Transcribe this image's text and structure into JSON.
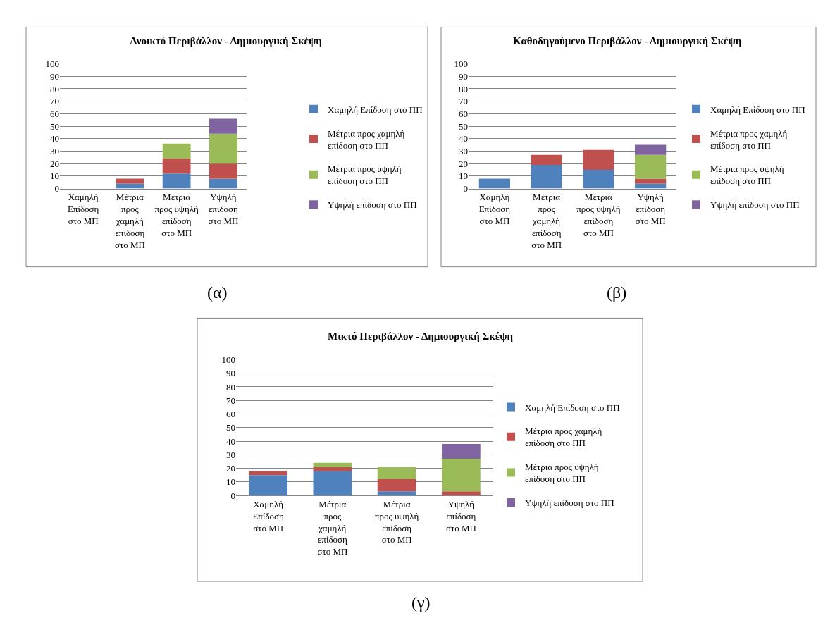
{
  "chart_data": [
    {
      "type": "bar",
      "stacked": true,
      "title": "Ανοικτό Περιβάλλον - Δημιουργική Σκέψη",
      "categories": [
        "Χαμηλή Επίδοση στο ΜΠ",
        "Μέτρια προς χαμηλή επίδοση στο ΜΠ",
        "Μέτρια προς υψηλή επίδοση στο ΜΠ",
        "Υψηλή επίδοση στο ΜΠ"
      ],
      "series": [
        {
          "name": "Χαμηλή Επίδοση στο ΠΠ",
          "color": "#4f81bd",
          "values": [
            0,
            4,
            12,
            8
          ]
        },
        {
          "name": "Μέτρια προς χαμηλή επίδοση στο ΠΠ",
          "color": "#c0504d",
          "values": [
            0,
            4,
            12,
            12
          ]
        },
        {
          "name": "Μέτρια προς υψηλή επίδοση στο ΠΠ",
          "color": "#9bbb59",
          "values": [
            0,
            0,
            12,
            24
          ]
        },
        {
          "name": "Υψηλή επίδοση στο ΠΠ",
          "color": "#8064a2",
          "values": [
            0,
            0,
            0,
            12
          ]
        }
      ],
      "ylim": [
        0,
        100
      ],
      "yticks": [
        0,
        10,
        20,
        30,
        40,
        50,
        60,
        70,
        80,
        90,
        100
      ],
      "grid": "y",
      "legend": "right",
      "annotations": [
        "(α)"
      ]
    },
    {
      "type": "bar",
      "stacked": true,
      "title": "Καθοδηγούμενο Περιβάλλον - Δημιουργική Σκέψη",
      "categories": [
        "Χαμηλή Επίδοση στο ΜΠ",
        "Μέτρια προς χαμηλή επίδοση στο ΜΠ",
        "Μέτρια προς υψηλή επίδοση στο ΜΠ",
        "Υψηλή επίδοση στο ΜΠ"
      ],
      "series": [
        {
          "name": "Χαμηλή Επίδοση στο ΠΠ",
          "color": "#4f81bd",
          "values": [
            8,
            19,
            15,
            4
          ]
        },
        {
          "name": "Μέτρια προς χαμηλή επίδοση στο ΠΠ",
          "color": "#c0504d",
          "values": [
            0,
            8,
            16,
            4
          ]
        },
        {
          "name": "Μέτρια προς υψηλή επίδοση στο ΠΠ",
          "color": "#9bbb59",
          "values": [
            0,
            0,
            0,
            19
          ]
        },
        {
          "name": "Υψηλή επίδοση στο ΠΠ",
          "color": "#8064a2",
          "values": [
            0,
            0,
            0,
            8
          ]
        }
      ],
      "ylim": [
        0,
        100
      ],
      "yticks": [
        0,
        10,
        20,
        30,
        40,
        50,
        60,
        70,
        80,
        90,
        100
      ],
      "grid": "y",
      "legend": "right",
      "annotations": [
        "(β)"
      ]
    },
    {
      "type": "bar",
      "stacked": true,
      "title": "Μικτό Περιβάλλον - Δημιουργική Σκέψη",
      "categories": [
        "Χαμηλή Επίδοση στο ΜΠ",
        "Μέτρια προς χαμηλή επίδοση στο ΜΠ",
        "Μέτρια προς υψηλή επίδοση στο ΜΠ",
        "Υψηλή επίδοση στο ΜΠ"
      ],
      "series": [
        {
          "name": "Χαμηλή Επίδοση στο ΠΠ",
          "color": "#4f81bd",
          "values": [
            15,
            18,
            3,
            0
          ]
        },
        {
          "name": "Μέτρια προς χαμηλή επίδοση στο ΠΠ",
          "color": "#c0504d",
          "values": [
            3,
            3,
            9,
            3
          ]
        },
        {
          "name": "Μέτρια προς υψηλή επίδοση στο ΠΠ",
          "color": "#9bbb59",
          "values": [
            0,
            3,
            9,
            24
          ]
        },
        {
          "name": "Υψηλή επίδοση στο ΠΠ",
          "color": "#8064a2",
          "values": [
            0,
            0,
            0,
            11
          ]
        }
      ],
      "ylim": [
        0,
        100
      ],
      "yticks": [
        0,
        10,
        20,
        30,
        40,
        50,
        60,
        70,
        80,
        90,
        100
      ],
      "grid": "y",
      "legend": "right",
      "annotations": [
        "(γ)"
      ]
    }
  ]
}
